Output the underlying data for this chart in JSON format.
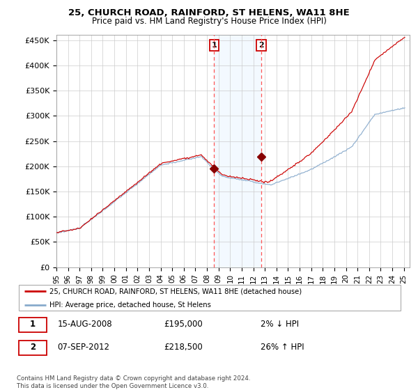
{
  "title1": "25, CHURCH ROAD, RAINFORD, ST HELENS, WA11 8HE",
  "title2": "Price paid vs. HM Land Registry's House Price Index (HPI)",
  "ylabel_ticks": [
    "£0",
    "£50K",
    "£100K",
    "£150K",
    "£200K",
    "£250K",
    "£300K",
    "£350K",
    "£400K",
    "£450K"
  ],
  "ylabel_values": [
    0,
    50000,
    100000,
    150000,
    200000,
    250000,
    300000,
    350000,
    400000,
    450000
  ],
  "ylim": [
    0,
    460000
  ],
  "sale1_date": "15-AUG-2008",
  "sale1_price": 195000,
  "sale1_hpi_label": "2% ↓ HPI",
  "sale1_year": 2008.62,
  "sale2_date": "07-SEP-2012",
  "sale2_price": 218500,
  "sale2_hpi_label": "26% ↑ HPI",
  "sale2_year": 2012.69,
  "legend_line1": "25, CHURCH ROAD, RAINFORD, ST HELENS, WA11 8HE (detached house)",
  "legend_line2": "HPI: Average price, detached house, St Helens",
  "footnote": "Contains HM Land Registry data © Crown copyright and database right 2024.\nThis data is licensed under the Open Government Licence v3.0.",
  "line_color_price": "#cc0000",
  "line_color_hpi": "#88aacc",
  "shade_color": "#ddeeff",
  "vline_color": "#ff5555",
  "marker_color": "#880000",
  "xlim_start": 1995.0,
  "xlim_end": 2025.5,
  "xtick_years": [
    1995,
    1996,
    1997,
    1998,
    1999,
    2000,
    2001,
    2002,
    2003,
    2004,
    2005,
    2006,
    2007,
    2008,
    2009,
    2010,
    2011,
    2012,
    2013,
    2014,
    2015,
    2016,
    2017,
    2018,
    2019,
    2020,
    2021,
    2022,
    2023,
    2024,
    2025
  ],
  "xtick_labels": [
    "95",
    "96",
    "97",
    "98",
    "99",
    "00",
    "01",
    "02",
    "03",
    "04",
    "05",
    "06",
    "07",
    "08",
    "09",
    "10",
    "11",
    "12",
    "13",
    "14",
    "15",
    "16",
    "17",
    "18",
    "19",
    "20",
    "21",
    "22",
    "23",
    "24",
    "25"
  ]
}
